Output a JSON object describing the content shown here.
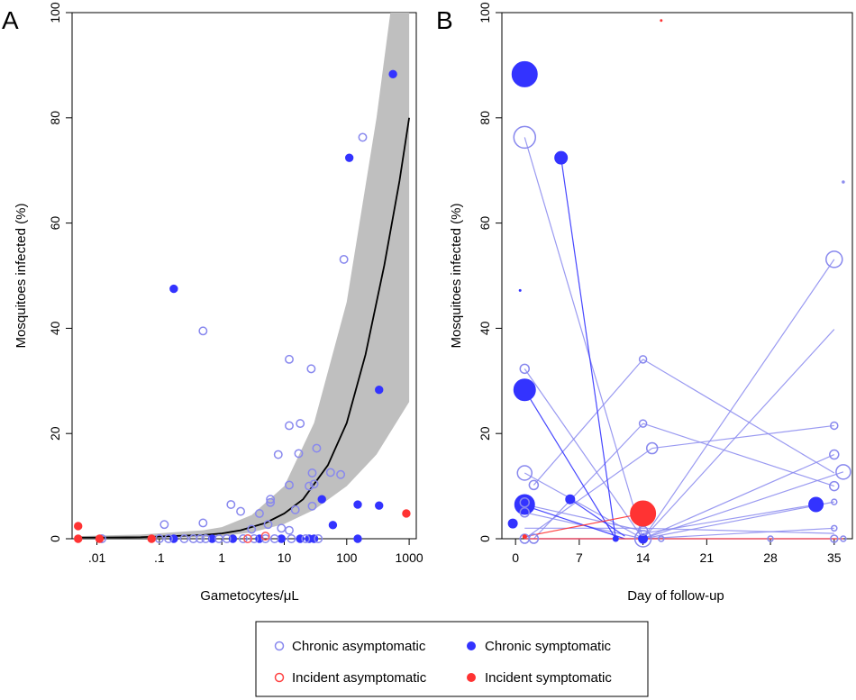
{
  "colors": {
    "chronic": "#3333ff",
    "chronic_light": "#8888ee",
    "incident": "#ff3333",
    "band": "#bfbfbf",
    "curve": "#000000"
  },
  "legend": {
    "chronic_asym": "Chronic asymptomatic",
    "chronic_sym": "Chronic symptomatic",
    "incident_asym": "Incident asymptomatic",
    "incident_sym": "Incident symptomatic"
  },
  "chart_data": [
    {
      "panel": "A",
      "type": "scatter",
      "xscale": "log",
      "xlabel": "Gametocytes/μL",
      "ylabel": "Mosquitoes infected (%)",
      "xlim": [
        0.004,
        1300
      ],
      "ylim": [
        0,
        100
      ],
      "xticks": [
        {
          "v": 0.01,
          "label": ".01"
        },
        {
          "v": 0.1,
          "label": ".1"
        },
        {
          "v": 1,
          "label": "1"
        },
        {
          "v": 10,
          "label": "10"
        },
        {
          "v": 100,
          "label": "100"
        },
        {
          "v": 1000,
          "label": "1000"
        }
      ],
      "yticks": [
        0,
        20,
        40,
        60,
        80,
        100
      ],
      "fit_curve": [
        [
          0.005,
          0.2
        ],
        [
          0.05,
          0.3
        ],
        [
          0.5,
          0.7
        ],
        [
          1,
          1.0
        ],
        [
          2,
          1.6
        ],
        [
          5,
          3.0
        ],
        [
          10,
          4.8
        ],
        [
          20,
          7.5
        ],
        [
          50,
          14
        ],
        [
          100,
          22
        ],
        [
          200,
          35
        ],
        [
          400,
          52
        ],
        [
          700,
          68
        ],
        [
          1000,
          80
        ]
      ],
      "fit_band": {
        "upper": [
          [
            0.005,
            0.5
          ],
          [
            0.05,
            0.8
          ],
          [
            0.5,
            1.6
          ],
          [
            1,
            2.2
          ],
          [
            3,
            4.5
          ],
          [
            10,
            10
          ],
          [
            30,
            22
          ],
          [
            100,
            45
          ],
          [
            300,
            80
          ],
          [
            500,
            100
          ],
          [
            1000,
            100
          ]
        ],
        "lower": [
          [
            0.005,
            0
          ],
          [
            0.05,
            0.1
          ],
          [
            0.5,
            0.3
          ],
          [
            1,
            0.5
          ],
          [
            3,
            1.2
          ],
          [
            10,
            2.8
          ],
          [
            30,
            5.5
          ],
          [
            100,
            10
          ],
          [
            300,
            16
          ],
          [
            1000,
            26
          ]
        ]
      },
      "points": [
        {
          "x": 0.17,
          "y": 47.5,
          "g": "cs"
        },
        {
          "x": 550,
          "y": 88.3,
          "g": "cs"
        },
        {
          "x": 110,
          "y": 72.4,
          "g": "cs"
        },
        {
          "x": 330,
          "y": 28.3,
          "g": "cs"
        },
        {
          "x": 40,
          "y": 7.5,
          "g": "cs"
        },
        {
          "x": 60,
          "y": 2.6,
          "g": "cs"
        },
        {
          "x": 150,
          "y": 6.5,
          "g": "cs"
        },
        {
          "x": 330,
          "y": 6.3,
          "g": "cs"
        },
        {
          "x": 150,
          "y": 0,
          "g": "cs"
        },
        {
          "x": 0.17,
          "y": 0,
          "g": "cs"
        },
        {
          "x": 0.7,
          "y": 0,
          "g": "cs"
        },
        {
          "x": 1.5,
          "y": 0,
          "g": "cs"
        },
        {
          "x": 4,
          "y": 0,
          "g": "cs"
        },
        {
          "x": 18,
          "y": 0,
          "g": "cs"
        },
        {
          "x": 25,
          "y": 0,
          "g": "cs"
        },
        {
          "x": 30,
          "y": 0,
          "g": "cs"
        },
        {
          "x": 9,
          "y": 0,
          "g": "cs"
        },
        {
          "x": 180,
          "y": 76.3,
          "g": "ca"
        },
        {
          "x": 90,
          "y": 53.1,
          "g": "ca"
        },
        {
          "x": 0.5,
          "y": 39.5,
          "g": "ca"
        },
        {
          "x": 12,
          "y": 34.1,
          "g": "ca"
        },
        {
          "x": 27,
          "y": 32.3,
          "g": "ca"
        },
        {
          "x": 12,
          "y": 21.5,
          "g": "ca"
        },
        {
          "x": 18,
          "y": 21.9,
          "g": "ca"
        },
        {
          "x": 33,
          "y": 17.2,
          "g": "ca"
        },
        {
          "x": 8,
          "y": 16,
          "g": "ca"
        },
        {
          "x": 17,
          "y": 16.2,
          "g": "ca"
        },
        {
          "x": 28,
          "y": 12.5,
          "g": "ca"
        },
        {
          "x": 55,
          "y": 12.6,
          "g": "ca"
        },
        {
          "x": 80,
          "y": 12.2,
          "g": "ca"
        },
        {
          "x": 12,
          "y": 10.2,
          "g": "ca"
        },
        {
          "x": 25,
          "y": 10,
          "g": "ca"
        },
        {
          "x": 30,
          "y": 10.4,
          "g": "ca"
        },
        {
          "x": 6,
          "y": 7.5,
          "g": "ca"
        },
        {
          "x": 6,
          "y": 6.9,
          "g": "ca"
        },
        {
          "x": 1.4,
          "y": 6.5,
          "g": "ca"
        },
        {
          "x": 0.12,
          "y": 2.7,
          "g": "ca"
        },
        {
          "x": 0.5,
          "y": 3,
          "g": "ca"
        },
        {
          "x": 2,
          "y": 5.2,
          "g": "ca"
        },
        {
          "x": 4,
          "y": 4.8,
          "g": "ca"
        },
        {
          "x": 15,
          "y": 5.5,
          "g": "ca"
        },
        {
          "x": 28,
          "y": 6.2,
          "g": "ca"
        },
        {
          "x": 5.5,
          "y": 2.7,
          "g": "ca"
        },
        {
          "x": 9,
          "y": 2,
          "g": "ca"
        },
        {
          "x": 3,
          "y": 1.8,
          "g": "ca"
        },
        {
          "x": 12,
          "y": 1.6,
          "g": "ca"
        },
        {
          "x": 0.012,
          "y": 0,
          "g": "ca"
        },
        {
          "x": 0.1,
          "y": 0,
          "g": "ca"
        },
        {
          "x": 0.14,
          "y": 0,
          "g": "ca"
        },
        {
          "x": 0.25,
          "y": 0,
          "g": "ca"
        },
        {
          "x": 0.35,
          "y": 0,
          "g": "ca"
        },
        {
          "x": 0.45,
          "y": 0,
          "g": "ca"
        },
        {
          "x": 0.55,
          "y": 0,
          "g": "ca"
        },
        {
          "x": 0.9,
          "y": 0,
          "g": "ca"
        },
        {
          "x": 1.2,
          "y": 0,
          "g": "ca"
        },
        {
          "x": 2.2,
          "y": 0,
          "g": "ca"
        },
        {
          "x": 3.3,
          "y": 0,
          "g": "ca"
        },
        {
          "x": 5,
          "y": 0,
          "g": "ca"
        },
        {
          "x": 7,
          "y": 0,
          "g": "ca"
        },
        {
          "x": 13,
          "y": 0,
          "g": "ca"
        },
        {
          "x": 22,
          "y": 0,
          "g": "ca"
        },
        {
          "x": 35,
          "y": 0,
          "g": "ca"
        },
        {
          "x": 2.6,
          "y": 0,
          "g": "ia"
        },
        {
          "x": 5,
          "y": 0.5,
          "g": "ia"
        },
        {
          "x": 0.005,
          "y": 2.4,
          "g": "is"
        },
        {
          "x": 0.005,
          "y": 0,
          "g": "is"
        },
        {
          "x": 0.011,
          "y": 0,
          "g": "is"
        },
        {
          "x": 0.075,
          "y": 0,
          "g": "is"
        },
        {
          "x": 900,
          "y": 4.8,
          "g": "is"
        }
      ]
    },
    {
      "panel": "B",
      "type": "scatter",
      "xlabel": "Day of follow-up",
      "ylabel": "Mosquitoes infected (%)",
      "xlim": [
        -1.5,
        37
      ],
      "ylim": [
        0,
        100
      ],
      "xticks": [
        {
          "v": 0,
          "label": "0"
        },
        {
          "v": 7,
          "label": "7"
        },
        {
          "v": 14,
          "label": "14"
        },
        {
          "v": 21,
          "label": "21"
        },
        {
          "v": 28,
          "label": "28"
        },
        {
          "v": 35,
          "label": "35"
        }
      ],
      "yticks": [
        0,
        20,
        40,
        60,
        80,
        100
      ],
      "segments": [
        {
          "x1": 1,
          "y1": 76.3,
          "x2": 14,
          "y2": 0,
          "g": "c"
        },
        {
          "x1": 1,
          "y1": 32.3,
          "x2": 14,
          "y2": 0,
          "g": "c"
        },
        {
          "x1": 1,
          "y1": 12.5,
          "x2": 14,
          "y2": 0,
          "g": "c"
        },
        {
          "x1": 1,
          "y1": 6.5,
          "x2": 14,
          "y2": 1.5,
          "g": "c"
        },
        {
          "x1": 1,
          "y1": 5,
          "x2": 14,
          "y2": 0,
          "g": "c"
        },
        {
          "x1": 2,
          "y1": 10.2,
          "x2": 14,
          "y2": 34.1,
          "g": "c"
        },
        {
          "x1": 2,
          "y1": 0,
          "x2": 14,
          "y2": 21.9,
          "g": "c"
        },
        {
          "x1": 1,
          "y1": 0,
          "x2": 15,
          "y2": 17.2,
          "g": "c"
        },
        {
          "x1": 1,
          "y1": 2,
          "x2": 14,
          "y2": 2,
          "g": "c"
        },
        {
          "x1": 1,
          "y1": 0,
          "x2": 14,
          "y2": 0,
          "g": "c"
        },
        {
          "x1": 14,
          "y1": 34.1,
          "x2": 35,
          "y2": 12.5,
          "g": "c"
        },
        {
          "x1": 14,
          "y1": 21.9,
          "x2": 35,
          "y2": 10,
          "g": "c"
        },
        {
          "x1": 15,
          "y1": 17.2,
          "x2": 35,
          "y2": 21.5,
          "g": "c"
        },
        {
          "x1": 14,
          "y1": 0,
          "x2": 35,
          "y2": 53.1,
          "g": "c"
        },
        {
          "x1": 14,
          "y1": 0,
          "x2": 35,
          "y2": 39.8,
          "g": "c"
        },
        {
          "x1": 14,
          "y1": 0,
          "x2": 35,
          "y2": 16,
          "g": "c"
        },
        {
          "x1": 14,
          "y1": 0,
          "x2": 35,
          "y2": 7,
          "g": "c"
        },
        {
          "x1": 14,
          "y1": 0,
          "x2": 35,
          "y2": 2,
          "g": "c"
        },
        {
          "x1": 14,
          "y1": 0,
          "x2": 35,
          "y2": 0,
          "g": "c"
        },
        {
          "x1": 14,
          "y1": 2,
          "x2": 35,
          "y2": 1,
          "g": "c"
        },
        {
          "x1": 14,
          "y1": 1,
          "x2": 33,
          "y2": 6.5,
          "g": "c"
        },
        {
          "x1": 14,
          "y1": 0,
          "x2": 36,
          "y2": 12.7,
          "g": "c"
        },
        {
          "x1": 1,
          "y1": 0,
          "x2": 14,
          "y2": 0,
          "g": "c"
        },
        {
          "x1": 5,
          "y1": 72.4,
          "x2": 11,
          "y2": 0,
          "g": "cs"
        },
        {
          "x1": 1,
          "y1": 28.3,
          "x2": 11,
          "y2": 0,
          "g": "cs"
        },
        {
          "x1": 6,
          "y1": 7.5,
          "x2": 12,
          "y2": 0.5,
          "g": "cs"
        },
        {
          "x1": 1,
          "y1": 6.3,
          "x2": 12,
          "y2": 0,
          "g": "cs"
        },
        {
          "x1": 1,
          "y1": 0.4,
          "x2": 14,
          "y2": 4.8,
          "g": "i"
        },
        {
          "x1": 1,
          "y1": 0,
          "x2": 14,
          "y2": 0,
          "g": "i"
        },
        {
          "x1": 14,
          "y1": 0,
          "x2": 36,
          "y2": 0,
          "g": "i"
        }
      ],
      "points": [
        {
          "x": 1,
          "y": 88.3,
          "g": "cs",
          "s": 14
        },
        {
          "x": 5,
          "y": 72.4,
          "g": "cs",
          "s": 7
        },
        {
          "x": 1,
          "y": 28.3,
          "g": "cs",
          "s": 12
        },
        {
          "x": 1,
          "y": 6.5,
          "g": "cs",
          "s": 11
        },
        {
          "x": 33,
          "y": 6.5,
          "g": "cs",
          "s": 8
        },
        {
          "x": 6,
          "y": 7.5,
          "g": "cs",
          "s": 5
        },
        {
          "x": -0.3,
          "y": 2.9,
          "g": "cs",
          "s": 5
        },
        {
          "x": 11,
          "y": 0,
          "g": "cs",
          "s": 3
        },
        {
          "x": 14,
          "y": 0,
          "g": "cs",
          "s": 5
        },
        {
          "x": 0.5,
          "y": 47.2,
          "g": "cs",
          "s": 1
        },
        {
          "x": 1,
          "y": 76.3,
          "g": "ca",
          "s": 12
        },
        {
          "x": 35,
          "y": 53.1,
          "g": "ca",
          "s": 9
        },
        {
          "x": 1,
          "y": 32.3,
          "g": "ca",
          "s": 5
        },
        {
          "x": 14,
          "y": 34.1,
          "g": "ca",
          "s": 4
        },
        {
          "x": 14,
          "y": 21.9,
          "g": "ca",
          "s": 4
        },
        {
          "x": 15,
          "y": 17.2,
          "g": "ca",
          "s": 6
        },
        {
          "x": 35,
          "y": 21.5,
          "g": "ca",
          "s": 4
        },
        {
          "x": 36,
          "y": 12.7,
          "g": "ca",
          "s": 8
        },
        {
          "x": 35,
          "y": 16,
          "g": "ca",
          "s": 5
        },
        {
          "x": 1,
          "y": 12.5,
          "g": "ca",
          "s": 8
        },
        {
          "x": 2,
          "y": 10.2,
          "g": "ca",
          "s": 5
        },
        {
          "x": 35,
          "y": 10,
          "g": "ca",
          "s": 5
        },
        {
          "x": 1,
          "y": 6.9,
          "g": "ca",
          "s": 5
        },
        {
          "x": 1,
          "y": 5,
          "g": "ca",
          "s": 5
        },
        {
          "x": 35,
          "y": 7,
          "g": "ca",
          "s": 3
        },
        {
          "x": 35,
          "y": 2,
          "g": "ca",
          "s": 3
        },
        {
          "x": 1,
          "y": 0,
          "g": "ca",
          "s": 5
        },
        {
          "x": 2,
          "y": 0,
          "g": "ca",
          "s": 5
        },
        {
          "x": 14,
          "y": 0,
          "g": "ca",
          "s": 9
        },
        {
          "x": 14,
          "y": 1.5,
          "g": "ca",
          "s": 5
        },
        {
          "x": 14,
          "y": 3,
          "g": "ca",
          "s": 4
        },
        {
          "x": 16,
          "y": 0,
          "g": "ca",
          "s": 3
        },
        {
          "x": 28,
          "y": 0,
          "g": "ca",
          "s": 3
        },
        {
          "x": 35,
          "y": 0,
          "g": "ca",
          "s": 4
        },
        {
          "x": 36,
          "y": 0,
          "g": "ca",
          "s": 3
        },
        {
          "x": 36,
          "y": 67.8,
          "g": "ca",
          "s": 1
        },
        {
          "x": 14,
          "y": 4.8,
          "g": "is",
          "s": 14
        },
        {
          "x": 1,
          "y": 0.4,
          "g": "is",
          "s": 2
        },
        {
          "x": 16,
          "y": 98.5,
          "g": "is",
          "s": 1
        }
      ]
    }
  ],
  "panel_labels": {
    "a": "A",
    "b": "B"
  }
}
